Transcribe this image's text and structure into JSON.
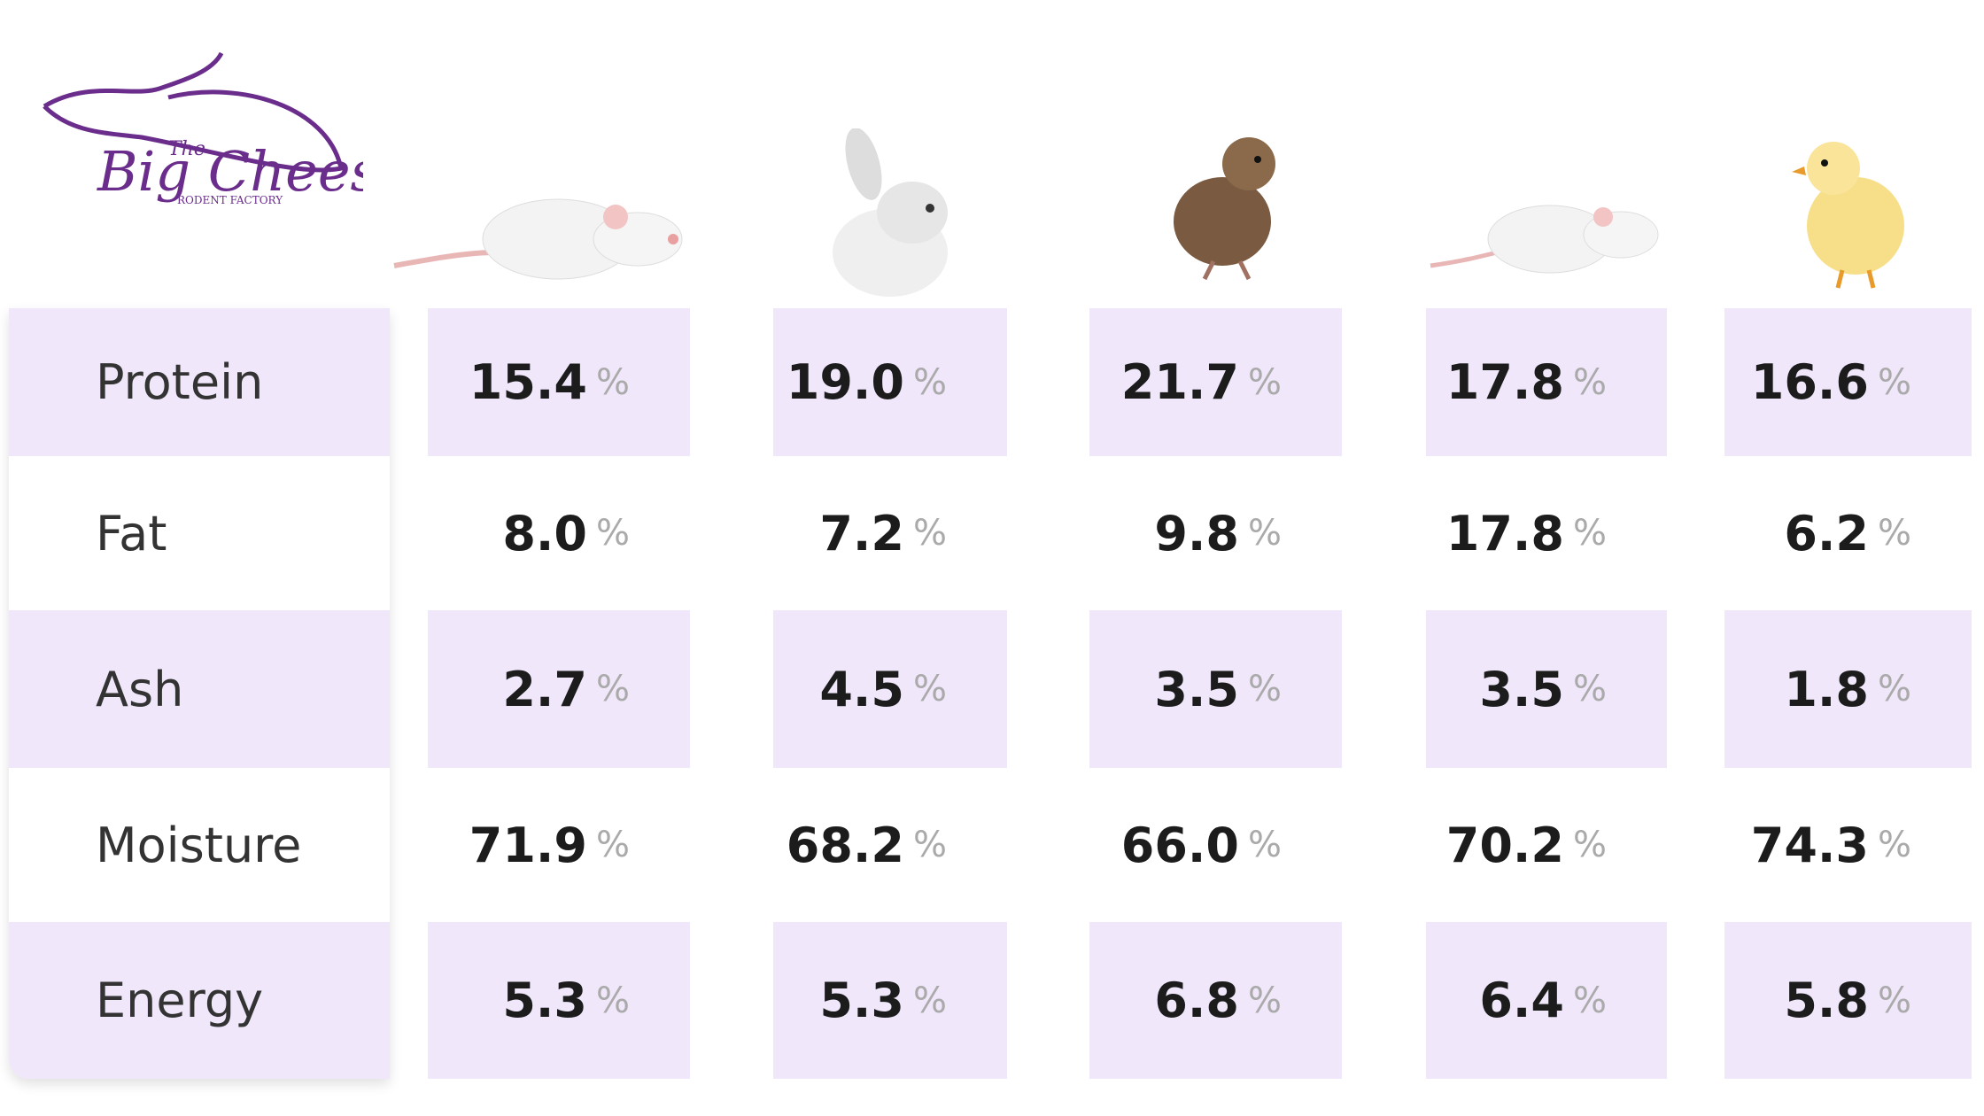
{
  "logo": {
    "prefix": "The",
    "name": "Big Cheese",
    "tagline": "RODENT FACTORY"
  },
  "table": {
    "unit": "%",
    "rows": [
      {
        "label": "Protein",
        "values": [
          "15.4",
          "19.0",
          "21.7",
          "17.8",
          "16.6"
        ]
      },
      {
        "label": "Fat",
        "values": [
          "8.0",
          "7.2",
          "9.8",
          "17.8",
          "6.2"
        ]
      },
      {
        "label": "Ash",
        "values": [
          "2.7",
          "4.5",
          "3.5",
          "3.5",
          "1.8"
        ]
      },
      {
        "label": "Moisture",
        "values": [
          "71.9",
          "68.2",
          "66.0",
          "70.2",
          "74.3"
        ]
      },
      {
        "label": "Energy",
        "values": [
          "5.3",
          "5.3",
          "6.8",
          "6.4",
          "5.8"
        ]
      }
    ]
  }
}
